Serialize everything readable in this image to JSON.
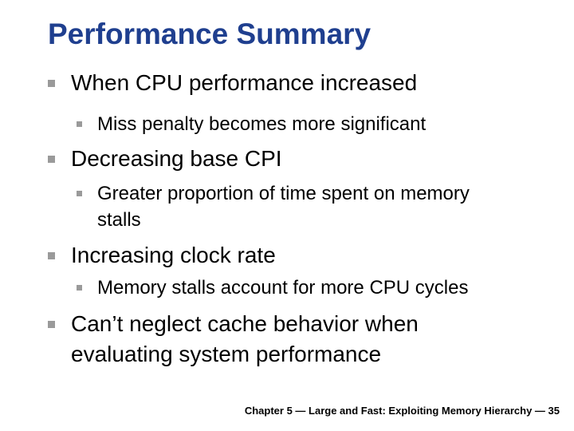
{
  "slide": {
    "title": "Performance Summary",
    "items": [
      {
        "level": 1,
        "text": "When CPU performance increased"
      },
      {
        "level": 2,
        "text": "Miss penalty becomes more significant"
      },
      {
        "level": 1,
        "text": "Decreasing base CPI"
      },
      {
        "level": 2,
        "lines": [
          "Greater proportion of time spent on memory",
          "stalls"
        ]
      },
      {
        "level": 1,
        "text": "Increasing clock rate"
      },
      {
        "level": 2,
        "text": "Memory stalls account for more CPU cycles"
      },
      {
        "level": 1,
        "lines": [
          "Can’t neglect cache behavior when",
          "evaluating system performance"
        ]
      }
    ],
    "footer": "Chapter 5 — Large and Fast: Exploiting Memory Hierarchy — 35"
  },
  "colors": {
    "title": "#1f3f8f",
    "bullet": "#9a9a9a",
    "text": "#000000",
    "background": "#ffffff"
  },
  "icons": {
    "bullet": "square-bullet-icon"
  }
}
